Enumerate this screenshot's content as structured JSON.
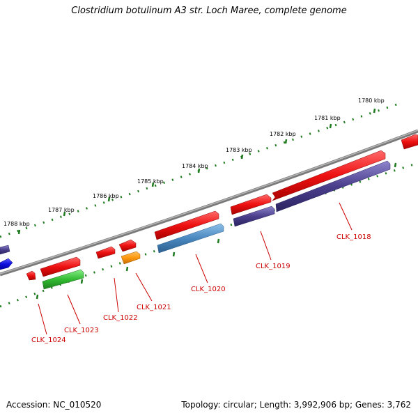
{
  "title": "Clostridium botulinum A3 str. Loch Maree, complete genome",
  "footer": {
    "accession": "Accession: NC_010520",
    "topology": "Topology: circular; Length: 3,992,906 bp; Genes: 3,762"
  },
  "colors": {
    "backbone": "#7a7a7a",
    "ticks": "#1e7a1e",
    "forward_gene": "#e81414",
    "reverse_gene": "#4b3f8c",
    "label": "#cc0000"
  },
  "ruler": [
    {
      "label": "1780 kbp"
    },
    {
      "label": "1781 kbp"
    },
    {
      "label": "1782 kbp"
    },
    {
      "label": "1783 kbp"
    },
    {
      "label": "1784 kbp"
    },
    {
      "label": "1785 kbp"
    },
    {
      "label": "1786 kbp"
    },
    {
      "label": "1787 kbp"
    },
    {
      "label": "1788 kbp"
    }
  ],
  "gene_labels": [
    {
      "label": "CLK_1018"
    },
    {
      "label": "CLK_1019"
    },
    {
      "label": "CLK_1020"
    },
    {
      "label": "CLK_1021"
    },
    {
      "label": "CLK_1022"
    },
    {
      "label": "CLK_1023"
    },
    {
      "label": "CLK_1024"
    }
  ]
}
